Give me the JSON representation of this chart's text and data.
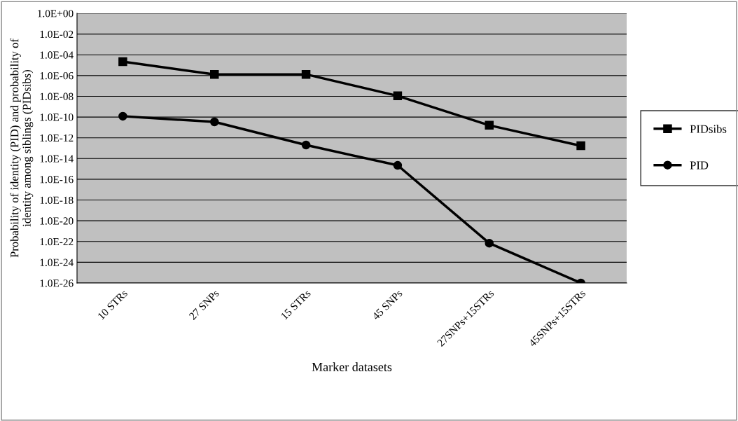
{
  "chart_data": {
    "type": "line",
    "xlabel": "Marker datasets",
    "ylabel": "Probability of identity (PID) and probability of\nidentity among siblings (PIDsibs)",
    "categories": [
      "10 STRs",
      "27 SNPs",
      "15 STRs",
      "45 SNPs",
      "27SNPs+15STRs",
      "45SNPs+15STRs"
    ],
    "series": [
      {
        "name": "PIDsibs",
        "color": "#000000",
        "marker": "square",
        "values": [
          2.2e-05,
          1.3e-06,
          1.3e-06,
          1.1e-08,
          1.6e-11,
          1.7e-13
        ]
      },
      {
        "name": "PID",
        "color": "#000000",
        "marker": "circle",
        "values": [
          1.2e-10,
          3.4e-11,
          2e-13,
          2.2e-15,
          6.9e-23,
          1e-26
        ]
      }
    ],
    "log": "y",
    "ylim": [
      1e-26,
      1
    ],
    "yticks": [
      {
        "value": 1,
        "label": "1.0E+00"
      },
      {
        "value": 0.01,
        "label": "1.0E-02"
      },
      {
        "value": 0.0001,
        "label": "1.0E-04"
      },
      {
        "value": 1e-06,
        "label": "1.0E-06"
      },
      {
        "value": 1e-08,
        "label": "1.0E-08"
      },
      {
        "value": 1e-10,
        "label": "1.0E-10"
      },
      {
        "value": 1e-12,
        "label": "1.0E-12"
      },
      {
        "value": 1e-14,
        "label": "1.0E-14"
      },
      {
        "value": 1e-16,
        "label": "1.0E-16"
      },
      {
        "value": 1e-18,
        "label": "1.0E-18"
      },
      {
        "value": 1e-20,
        "label": "1.0E-20"
      },
      {
        "value": 1e-22,
        "label": "1.0E-22"
      },
      {
        "value": 1e-24,
        "label": "1.0E-24"
      },
      {
        "value": 1e-26,
        "label": "1.0E-26"
      }
    ],
    "grid": "y",
    "legend": "right",
    "line_style": "solid"
  }
}
